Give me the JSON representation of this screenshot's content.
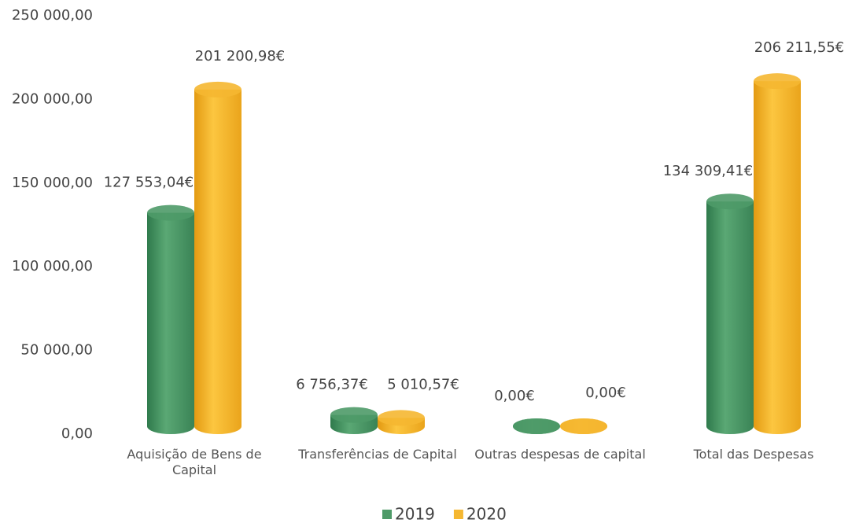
{
  "chart_data": {
    "type": "bar",
    "categories": [
      "Aquisição de Bens de Capital",
      "Transferências de Capital",
      "Outras despesas de capital",
      "Total das Despesas"
    ],
    "series": [
      {
        "name": "2019",
        "color": "#4e9a68",
        "values": [
          127553.04,
          6756.37,
          0,
          134309.41
        ],
        "value_labels": [
          "127 553,04€",
          "6 756,37€",
          "0,00€",
          "134 309,41€"
        ]
      },
      {
        "name": "2020",
        "color": "#f5b731",
        "values": [
          201200.98,
          5010.57,
          0,
          206211.55
        ],
        "value_labels": [
          "201 200,98€",
          "5 010,57€",
          "0,00€",
          "206 211,55€"
        ]
      }
    ],
    "ylim": [
      0,
      250000
    ],
    "yticks": [
      {
        "value": 0,
        "label": "0,00"
      },
      {
        "value": 50000,
        "label": "50 000,00"
      },
      {
        "value": 100000,
        "label": "100 000,00"
      },
      {
        "value": 150000,
        "label": "150 000,00"
      },
      {
        "value": 200000,
        "label": "200 000,00"
      },
      {
        "value": 250000,
        "label": "250 000,00"
      }
    ],
    "legend": "bottom"
  }
}
